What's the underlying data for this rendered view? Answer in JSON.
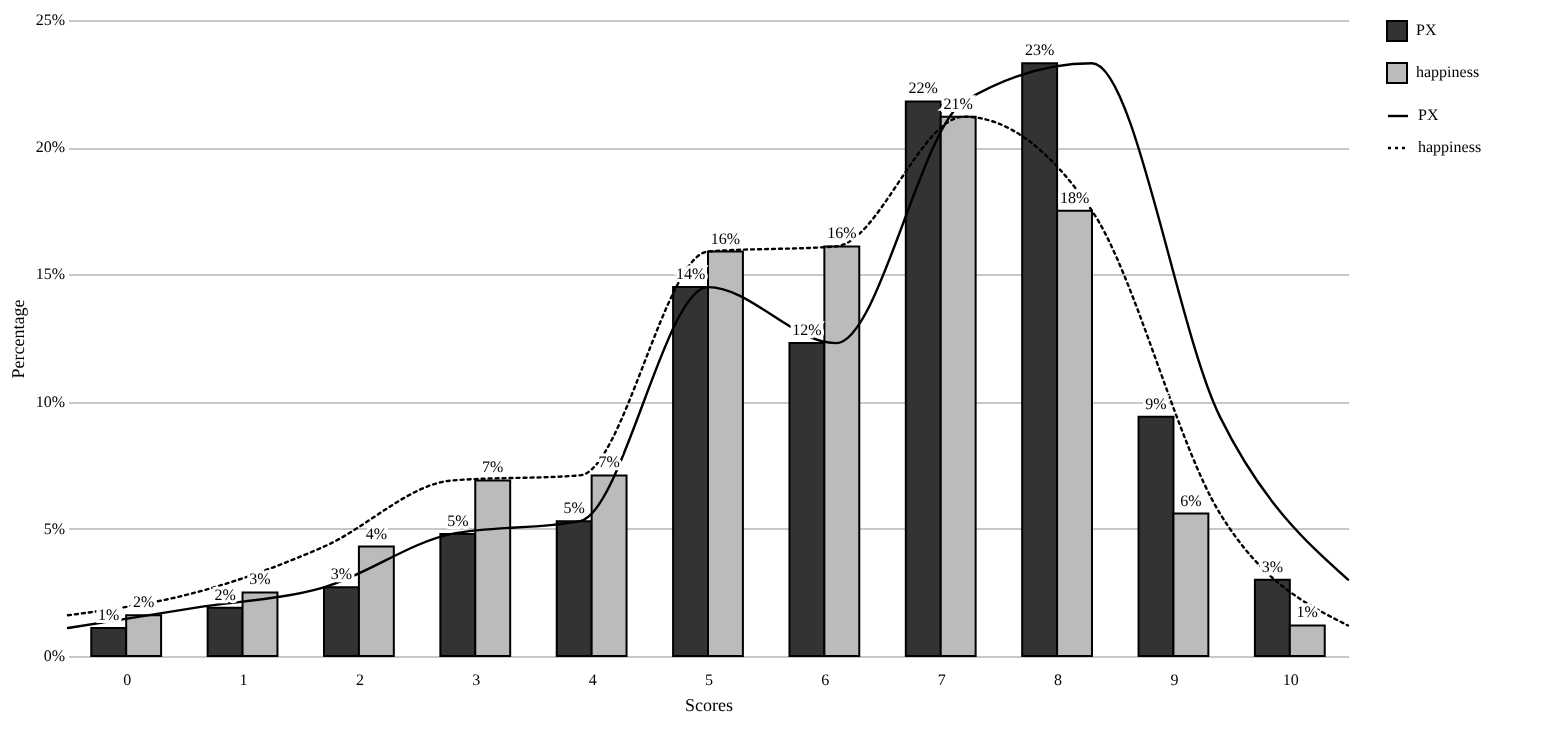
{
  "chart_data": {
    "type": "bar",
    "xlabel": "Scores",
    "ylabel": "Percentage",
    "x": [
      0,
      1,
      2,
      3,
      4,
      5,
      6,
      7,
      8,
      9,
      10
    ],
    "xlim": [
      -0.5,
      10.5
    ],
    "xticks": [
      0,
      1,
      2,
      3,
      4,
      5,
      6,
      7,
      8,
      9,
      10
    ],
    "ylim": [
      0,
      25
    ],
    "yticks": [
      {
        "value": 0,
        "label": "0%"
      },
      {
        "value": 5,
        "label": "5%"
      },
      {
        "value": 10,
        "label": "10%"
      },
      {
        "value": 15,
        "label": "15%"
      },
      {
        "value": 20,
        "label": "20%"
      },
      {
        "value": 25,
        "label": "25%"
      }
    ],
    "grid": "y",
    "legend": "right",
    "series": [
      {
        "name": "PX",
        "type": "bar",
        "color": "#333333",
        "values": [
          1.1,
          1.9,
          2.7,
          4.8,
          5.3,
          14.5,
          12.3,
          21.8,
          23.3,
          9.4,
          3.0
        ],
        "value_labels": [
          "1%",
          "2%",
          "3%",
          "5%",
          "5%",
          "14%",
          "12%",
          "22%",
          "23%",
          "9%",
          "3%"
        ]
      },
      {
        "name": "happiness",
        "type": "bar",
        "color": "#bbbbbb",
        "values": [
          1.6,
          2.5,
          4.3,
          6.9,
          7.1,
          15.9,
          16.1,
          21.2,
          17.5,
          5.6,
          1.2
        ],
        "value_labels": [
          "2%",
          "3%",
          "4%",
          "7%",
          "7%",
          "16%",
          "16%",
          "21%",
          "18%",
          "6%",
          "1%"
        ]
      },
      {
        "name": "PX",
        "type": "line",
        "color": "#000000",
        "line_style": "solid",
        "x": [
          -0.5,
          0.6,
          1.7,
          2.8,
          3.9,
          5.0,
          6.1,
          7.2,
          8.3,
          9.4,
          10.5
        ],
        "values": [
          1.1,
          1.9,
          2.7,
          4.8,
          5.3,
          14.5,
          12.3,
          21.8,
          23.3,
          9.4,
          3.0
        ]
      },
      {
        "name": "happiness",
        "type": "line",
        "color": "#000000",
        "line_style": "dotted",
        "x": [
          -0.5,
          0.6,
          1.7,
          2.8,
          3.9,
          5.0,
          6.1,
          7.2,
          8.3,
          9.4,
          10.5
        ],
        "values": [
          1.6,
          2.5,
          4.3,
          6.9,
          7.1,
          15.9,
          16.1,
          21.2,
          17.5,
          5.6,
          1.2
        ]
      }
    ]
  }
}
